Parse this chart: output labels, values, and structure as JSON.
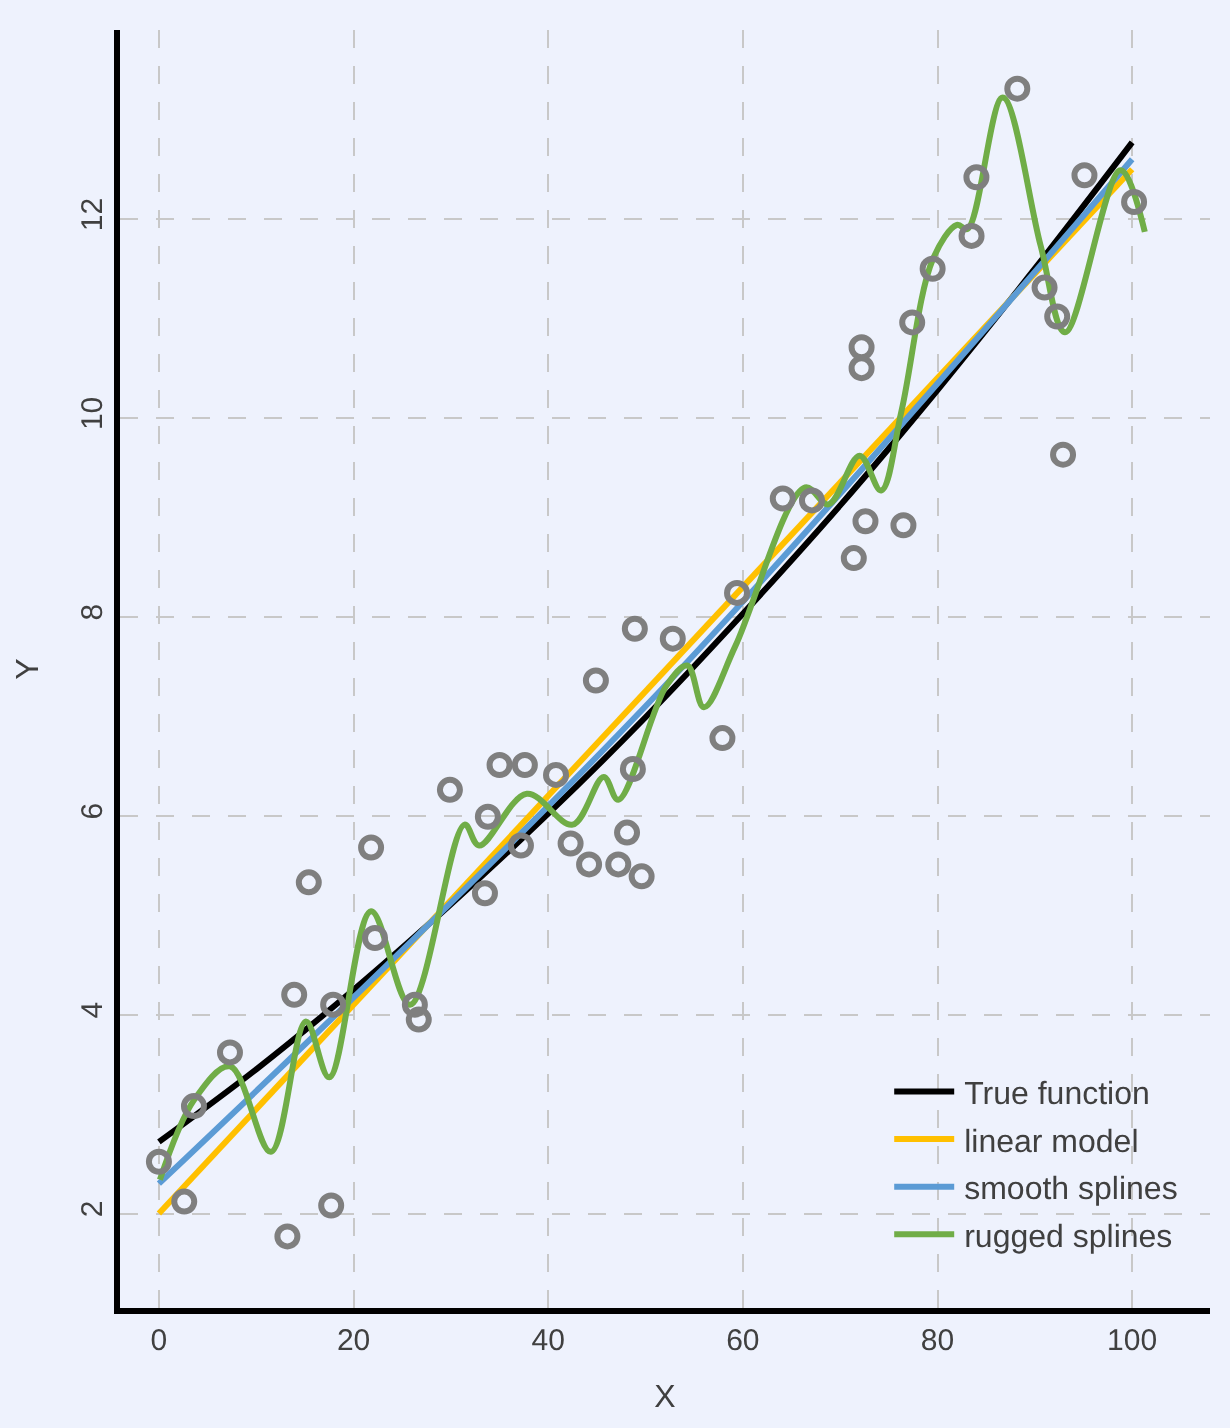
{
  "chart_data": {
    "type": "line",
    "xlabel": "X",
    "ylabel": "Y",
    "xlim": [
      -4,
      108
    ],
    "ylim": [
      1.05,
      13.9
    ],
    "xticks": [
      0,
      20,
      40,
      60,
      80,
      100
    ],
    "yticks": [
      2,
      4,
      6,
      8,
      10,
      12
    ],
    "grid": true,
    "legend": "bottom right",
    "line_style": "solid",
    "series": [
      {
        "type": "scatter",
        "marker": "circle",
        "color": "#7f7f7f",
        "x": [
          0,
          2.6,
          3.6,
          7.3,
          13.2,
          13.9,
          15.4,
          17.7,
          17.9,
          21.8,
          22.2,
          26.3,
          26.7,
          29.9,
          33.5,
          33.8,
          35.0,
          37.6,
          37.2,
          40.8,
          42.3,
          44.2,
          44.9,
          47.2,
          48.1,
          48.7,
          49.6,
          48.9,
          52.8,
          57.9,
          59.4,
          64.1,
          67.1,
          71.4,
          72.2,
          72.2,
          72.6,
          76.5,
          77.4,
          79.5,
          83.5,
          84.0,
          88.2,
          91.0,
          92.3,
          92.9,
          95.1,
          100.2
        ],
        "values": [
          2.52,
          2.12,
          3.08,
          3.62,
          1.77,
          4.2,
          5.33,
          2.08,
          4.1,
          5.68,
          4.77,
          4.1,
          3.95,
          6.26,
          5.22,
          5.99,
          6.51,
          6.51,
          5.7,
          6.41,
          5.72,
          5.51,
          7.36,
          5.51,
          5.83,
          6.47,
          5.39,
          7.88,
          7.78,
          6.78,
          8.24,
          9.19,
          9.17,
          8.59,
          10.5,
          10.71,
          8.96,
          8.92,
          10.96,
          11.5,
          11.83,
          12.42,
          13.31,
          11.31,
          11.02,
          9.63,
          12.44,
          12.17
        ]
      },
      {
        "name": "True function",
        "color": "#000000",
        "x": [
          0,
          10,
          20,
          30,
          40,
          50,
          60,
          70,
          80,
          90,
          100
        ],
        "values": [
          2.72,
          3.45,
          4.25,
          5.11,
          6.02,
          6.99,
          8.03,
          9.12,
          10.28,
          11.5,
          12.77
        ]
      },
      {
        "name": "linear model",
        "color": "#ffc000",
        "x": [
          0,
          100
        ],
        "values": [
          2.0,
          12.5
        ]
      },
      {
        "name": "smooth splines",
        "color": "#5b9bd5",
        "x": [
          0,
          50,
          100
        ],
        "values": [
          2.3,
          7.1,
          12.6
        ]
      },
      {
        "name": "rugged splines",
        "color": "#70ad47",
        "x": [
          0.1,
          3.6,
          7.3,
          11.5,
          15.1,
          17.5,
          21.8,
          25.8,
          31.4,
          32.9,
          37.8,
          42.5,
          45.7,
          47.2,
          52.1,
          54.3,
          56,
          59.2,
          66.4,
          68.8,
          72.0,
          74.2,
          76.3,
          79.5,
          82,
          83.1,
          86.7,
          90.6,
          93.1,
          98.8,
          101.3
        ],
        "values": [
          2.34,
          3.14,
          3.48,
          2.62,
          3.93,
          3.37,
          5.04,
          4.1,
          5.91,
          5.7,
          6.22,
          5.91,
          6.39,
          6.16,
          7.3,
          7.51,
          7.09,
          7.7,
          9.3,
          9.13,
          9.62,
          9.27,
          10.07,
          11.59,
          11.94,
          11.9,
          13.22,
          11.73,
          10.86,
          12.49,
          11.87
        ]
      }
    ]
  }
}
